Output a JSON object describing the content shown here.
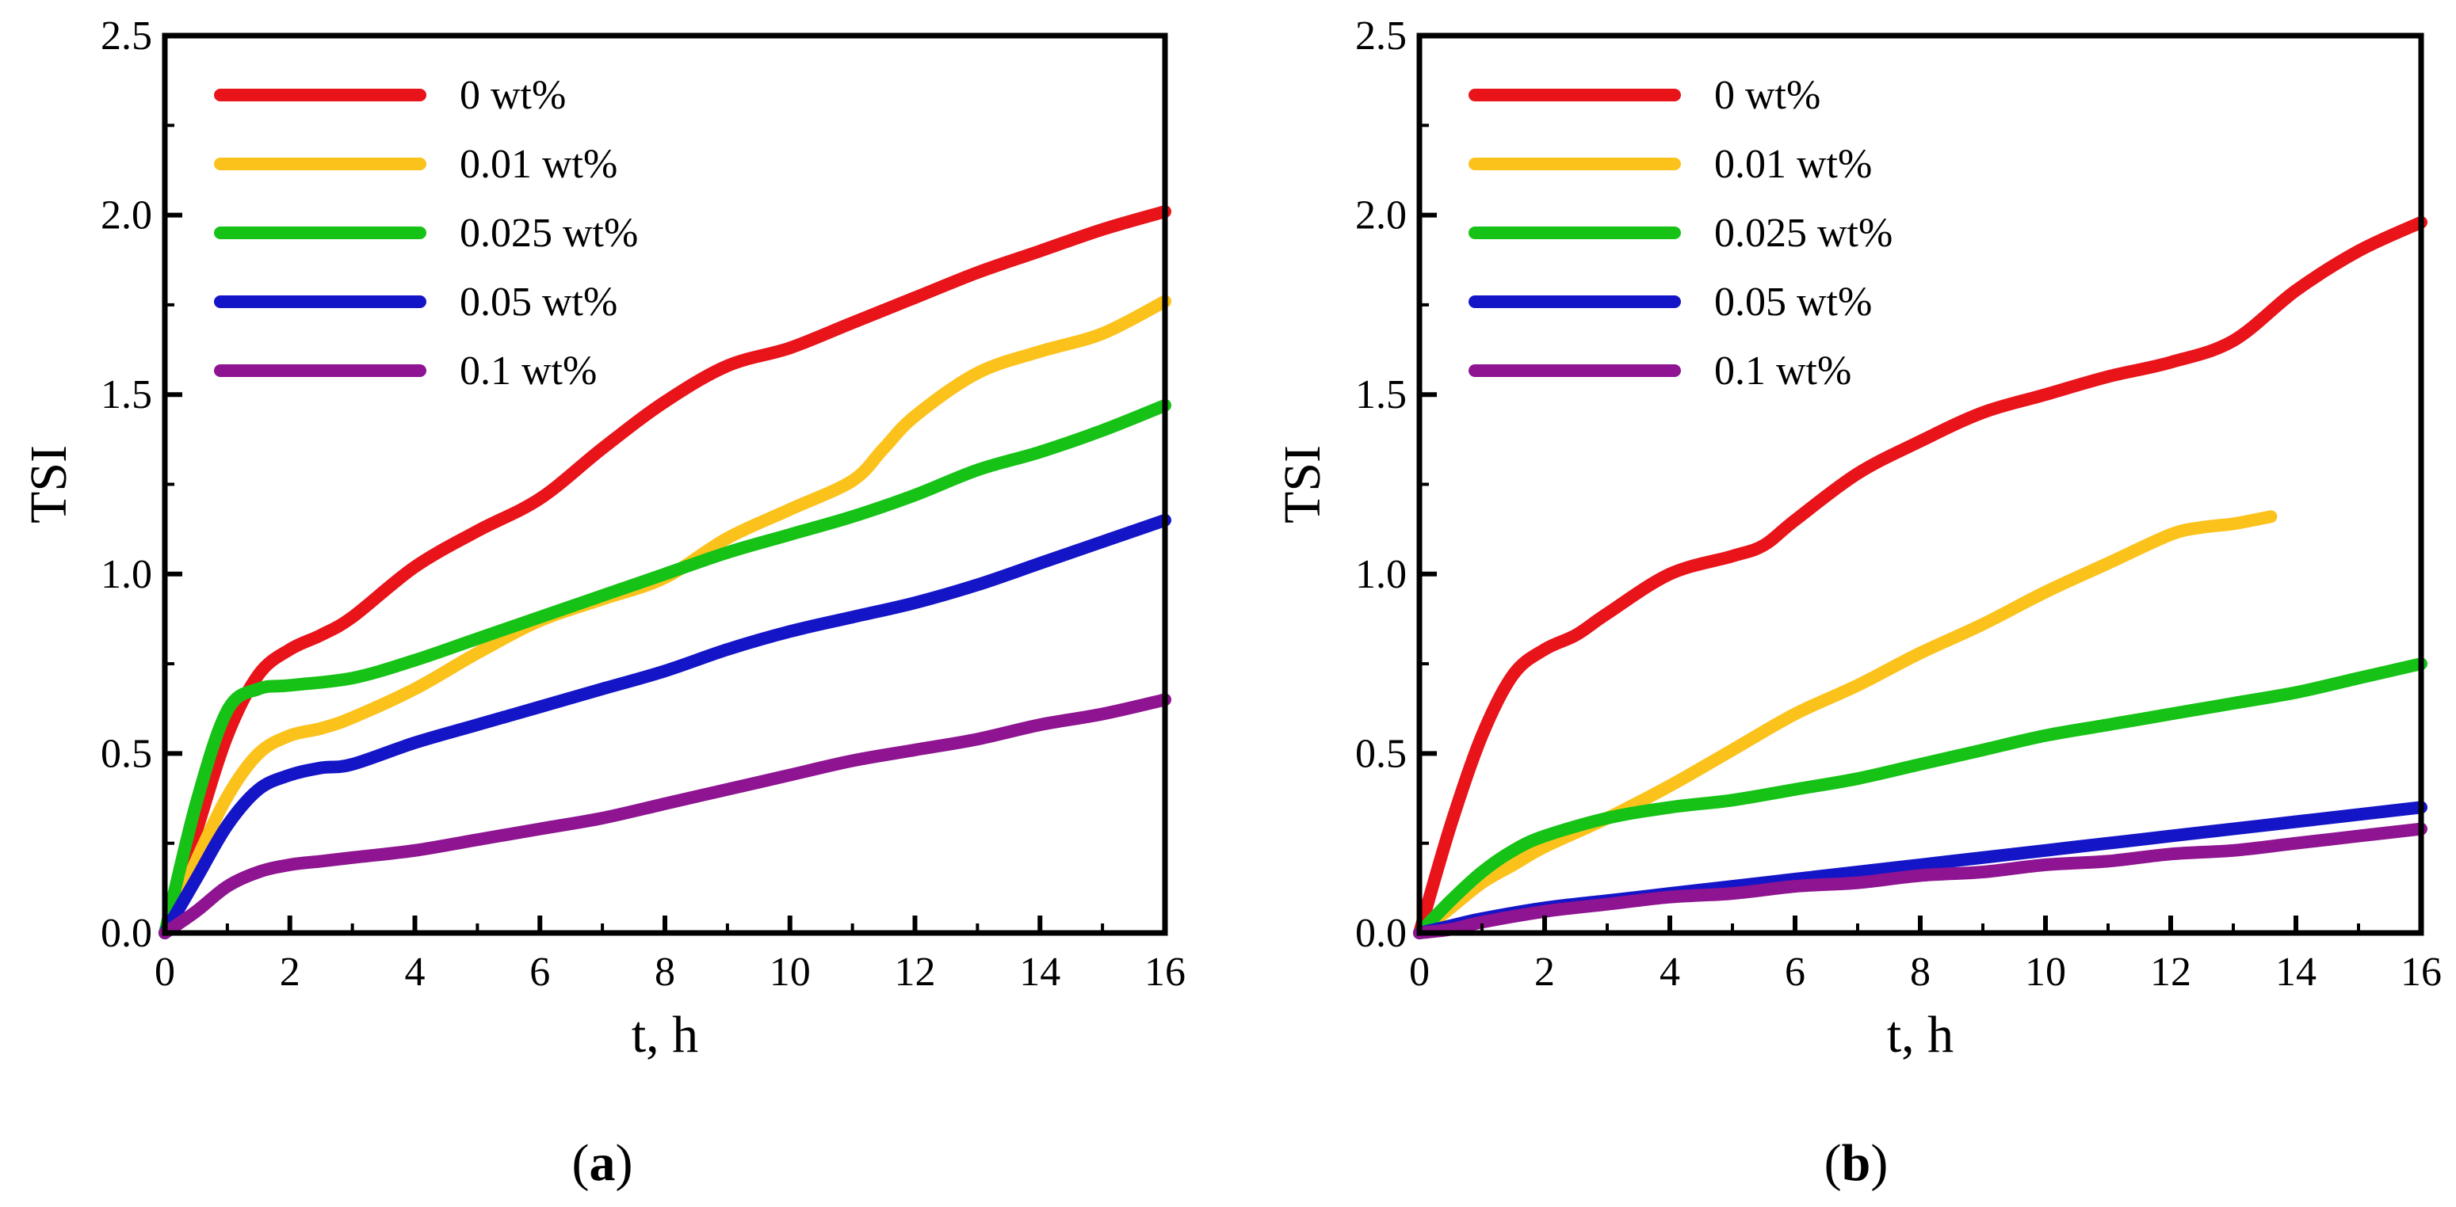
{
  "chart_data": [
    {
      "type": "line",
      "panel_label": "a",
      "title": "",
      "xlabel": "t, h",
      "ylabel": "TSI",
      "xlim": [
        0,
        16
      ],
      "ylim": [
        0,
        2.5
      ],
      "xticks": [
        0,
        2,
        4,
        6,
        8,
        10,
        12,
        14,
        16
      ],
      "xtick_labels": [
        "0",
        "2",
        "4",
        "6",
        "8",
        "10",
        "12",
        "14",
        "16"
      ],
      "yticks": [
        0,
        0.5,
        1,
        1.5,
        2,
        2.5
      ],
      "ytick_labels": [
        "0.0",
        "0.5",
        "1.0",
        "1.5",
        "2.0",
        "2.5"
      ],
      "grid": false,
      "legend_position": "top-left",
      "series": [
        {
          "name": "0 wt%",
          "color": "#e8141a",
          "x": [
            0,
            0.5,
            1,
            1.5,
            2,
            2.5,
            3,
            4,
            5,
            6,
            7,
            8,
            9,
            10,
            11,
            12,
            13,
            14,
            15,
            16
          ],
          "y": [
            0,
            0.28,
            0.55,
            0.72,
            0.79,
            0.83,
            0.88,
            1.02,
            1.12,
            1.21,
            1.35,
            1.48,
            1.58,
            1.63,
            1.7,
            1.77,
            1.84,
            1.9,
            1.96,
            2.01
          ]
        },
        {
          "name": "0.01 wt%",
          "color": "#fcc21c",
          "x": [
            0,
            0.5,
            1,
            1.5,
            2,
            2.5,
            3,
            4,
            5,
            6,
            7,
            8,
            9,
            10,
            11,
            11.5,
            12,
            13,
            14,
            15,
            16
          ],
          "y": [
            0,
            0.2,
            0.38,
            0.5,
            0.55,
            0.57,
            0.6,
            0.68,
            0.78,
            0.87,
            0.93,
            0.99,
            1.1,
            1.18,
            1.26,
            1.35,
            1.44,
            1.56,
            1.62,
            1.67,
            1.76
          ]
        },
        {
          "name": "0.025 wt%",
          "color": "#17c217",
          "x": [
            0,
            0.5,
            1,
            1.5,
            2,
            3,
            4,
            5,
            6,
            7,
            8,
            9,
            10,
            11,
            12,
            13,
            14,
            15,
            16
          ],
          "y": [
            0,
            0.36,
            0.62,
            0.68,
            0.69,
            0.71,
            0.76,
            0.82,
            0.88,
            0.94,
            1.0,
            1.06,
            1.11,
            1.16,
            1.22,
            1.29,
            1.34,
            1.4,
            1.47
          ]
        },
        {
          "name": "0.05 wt%",
          "color": "#1515c8",
          "x": [
            0,
            0.5,
            1,
            1.5,
            2,
            2.5,
            3,
            4,
            5,
            6,
            7,
            8,
            9,
            10,
            11,
            12,
            13,
            14,
            15,
            16
          ],
          "y": [
            0,
            0.15,
            0.3,
            0.4,
            0.44,
            0.46,
            0.47,
            0.53,
            0.58,
            0.63,
            0.68,
            0.73,
            0.79,
            0.84,
            0.88,
            0.92,
            0.97,
            1.03,
            1.09,
            1.15
          ]
        },
        {
          "name": "0.1 wt%",
          "color": "#8e1491",
          "x": [
            0,
            0.5,
            1,
            1.5,
            2,
            2.5,
            3,
            4,
            5,
            6,
            7,
            8,
            9,
            10,
            11,
            12,
            13,
            14,
            15,
            16
          ],
          "y": [
            0,
            0.06,
            0.13,
            0.17,
            0.19,
            0.2,
            0.21,
            0.23,
            0.26,
            0.29,
            0.32,
            0.36,
            0.4,
            0.44,
            0.48,
            0.51,
            0.54,
            0.58,
            0.61,
            0.65
          ]
        }
      ]
    },
    {
      "type": "line",
      "panel_label": "b",
      "title": "",
      "xlabel": "t, h",
      "ylabel": "TSI",
      "xlim": [
        0,
        16
      ],
      "ylim": [
        0,
        2.5
      ],
      "xticks": [
        0,
        2,
        4,
        6,
        8,
        10,
        12,
        14,
        16
      ],
      "xtick_labels": [
        "0",
        "2",
        "4",
        "6",
        "8",
        "10",
        "12",
        "14",
        "16"
      ],
      "yticks": [
        0,
        0.5,
        1,
        1.5,
        2,
        2.5
      ],
      "ytick_labels": [
        "0.0",
        "0.5",
        "1.0",
        "1.5",
        "2.0",
        "2.5"
      ],
      "grid": false,
      "legend_position": "top-left",
      "series": [
        {
          "name": "0 wt%",
          "color": "#e8141a",
          "x": [
            0,
            0.5,
            1,
            1.5,
            2,
            2.5,
            3,
            4,
            5,
            5.5,
            6,
            7,
            8,
            9,
            10,
            11,
            12,
            13,
            14,
            15,
            16
          ],
          "y": [
            0,
            0.3,
            0.55,
            0.72,
            0.79,
            0.83,
            0.89,
            1.0,
            1.05,
            1.08,
            1.15,
            1.28,
            1.37,
            1.45,
            1.5,
            1.55,
            1.59,
            1.65,
            1.79,
            1.9,
            1.98
          ]
        },
        {
          "name": "0.01 wt%",
          "color": "#fcc21c",
          "x": [
            0,
            0.5,
            1,
            1.5,
            2,
            3,
            4,
            5,
            6,
            7,
            8,
            9,
            10,
            11,
            12,
            12.5,
            13,
            13.6
          ],
          "y": [
            0,
            0.07,
            0.14,
            0.19,
            0.24,
            0.32,
            0.41,
            0.51,
            0.61,
            0.69,
            0.78,
            0.86,
            0.95,
            1.03,
            1.11,
            1.13,
            1.14,
            1.16
          ]
        },
        {
          "name": "0.025 wt%",
          "color": "#17c217",
          "x": [
            0,
            0.5,
            1,
            1.5,
            2,
            3,
            4,
            5,
            6,
            7,
            8,
            9,
            10,
            11,
            12,
            13,
            14,
            15,
            16
          ],
          "y": [
            0,
            0.09,
            0.17,
            0.23,
            0.27,
            0.32,
            0.35,
            0.37,
            0.4,
            0.43,
            0.47,
            0.51,
            0.55,
            0.58,
            0.61,
            0.64,
            0.67,
            0.71,
            0.75
          ]
        },
        {
          "name": "0.05 wt%",
          "color": "#1515c8",
          "x": [
            0,
            0.5,
            1,
            2,
            3,
            4,
            5,
            6,
            7,
            8,
            9,
            10,
            11,
            12,
            13,
            14,
            15,
            16
          ],
          "y": [
            0,
            0.02,
            0.04,
            0.07,
            0.09,
            0.11,
            0.13,
            0.15,
            0.17,
            0.19,
            0.21,
            0.23,
            0.25,
            0.27,
            0.29,
            0.31,
            0.33,
            0.35
          ]
        },
        {
          "name": "0.1 wt%",
          "color": "#8e1491",
          "x": [
            0,
            0.5,
            1,
            2,
            3,
            4,
            5,
            6,
            7,
            8,
            9,
            10,
            11,
            12,
            13,
            14,
            15,
            16
          ],
          "y": [
            0,
            0.01,
            0.03,
            0.06,
            0.08,
            0.1,
            0.11,
            0.13,
            0.14,
            0.16,
            0.17,
            0.19,
            0.2,
            0.22,
            0.23,
            0.25,
            0.27,
            0.29
          ]
        }
      ]
    }
  ]
}
